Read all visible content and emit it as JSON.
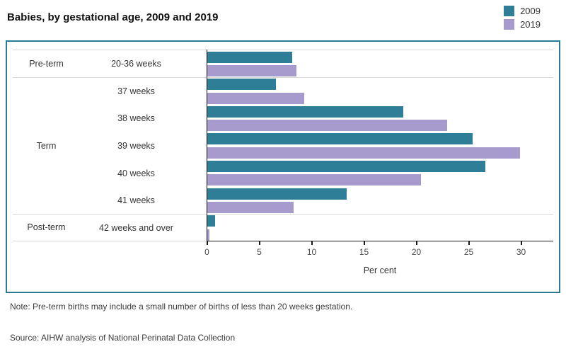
{
  "title": "Babies, by gestational age, 2009 and 2019",
  "legend": {
    "items": [
      {
        "label": "2009",
        "color": "#2d7e96"
      },
      {
        "label": "2019",
        "color": "#a79bce"
      }
    ]
  },
  "note": "Note: Pre-term births may include a small number of births of less than 20 weeks gestation.",
  "source": "Source: AIHW analysis of National Perinatal Data Collection",
  "chart_data": {
    "type": "bar",
    "orientation": "horizontal",
    "title": "Babies, by gestational age, 2009 and 2019",
    "xlabel": "Per cent",
    "ylabel": "",
    "xlim": [
      0,
      32.4
    ],
    "x_ticks": [
      "0",
      "5",
      "10",
      "15",
      "20",
      "25",
      "30"
    ],
    "x_tick_values": [
      0,
      5,
      10,
      15,
      20,
      25,
      30
    ],
    "gridlines": "none",
    "legend_position": "top-right",
    "series_names": [
      "2009",
      "2019"
    ],
    "series_colors": {
      "2009": "#2d7e96",
      "2019": "#a79bce"
    },
    "groups": [
      {
        "group": "Pre-term",
        "rows": [
          {
            "label": "20-36 weeks",
            "values": [
              8.2,
              8.6
            ]
          }
        ]
      },
      {
        "group": "Term",
        "rows": [
          {
            "label": "37 weeks",
            "values": [
              6.6,
              9.3
            ]
          },
          {
            "label": "38 weeks",
            "values": [
              18.8,
              23.0
            ]
          },
          {
            "label": "39 weeks",
            "values": [
              25.4,
              29.9
            ]
          },
          {
            "label": "40 weeks",
            "values": [
              26.6,
              20.5
            ]
          },
          {
            "label": "41 weeks",
            "values": [
              13.4,
              8.3
            ]
          }
        ]
      },
      {
        "group": "Post-term",
        "rows": [
          {
            "label": "42 weeks and over",
            "values": [
              0.8,
              0.3
            ]
          }
        ]
      }
    ]
  }
}
